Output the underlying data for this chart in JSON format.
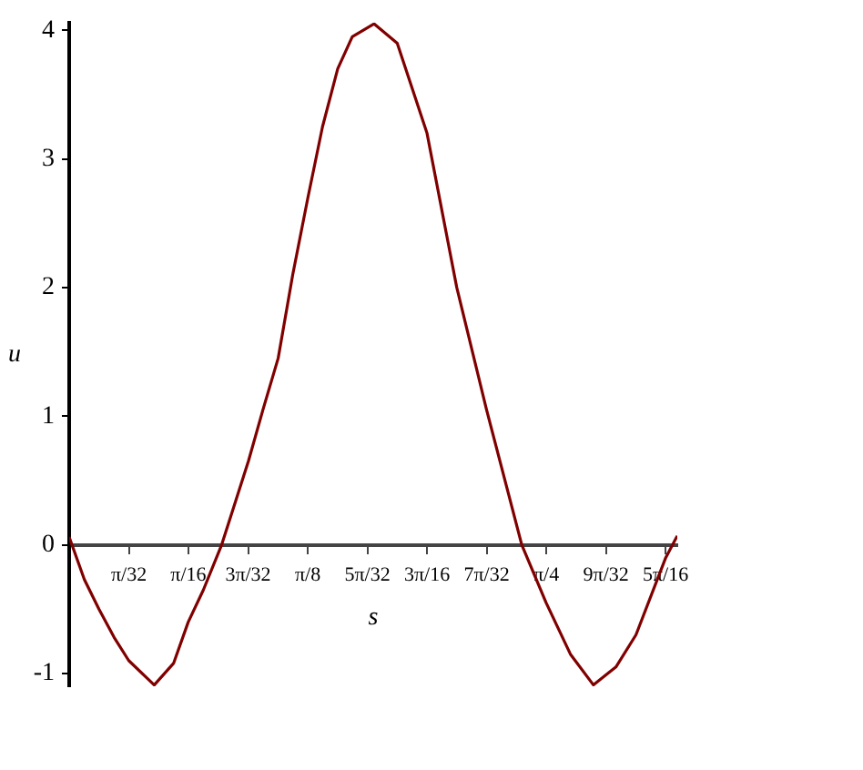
{
  "chart_data": {
    "type": "line",
    "xlabel": "s",
    "ylabel": "u",
    "x": [
      0,
      0.025,
      0.049,
      0.074,
      0.098,
      0.14,
      0.172,
      0.196,
      0.221,
      0.251,
      0.295,
      0.319,
      0.344,
      0.368,
      0.393,
      0.417,
      0.442,
      0.466,
      0.502,
      0.54,
      0.589,
      0.638,
      0.687,
      0.745,
      0.785,
      0.825,
      0.863,
      0.9,
      0.933,
      0.982,
      1.001
    ],
    "series": [
      {
        "color": "#800000",
        "values": [
          0.06,
          -0.27,
          -0.5,
          -0.72,
          -0.9,
          -1.09,
          -0.92,
          -0.6,
          -0.35,
          0,
          0.65,
          1.05,
          1.45,
          2.1,
          2.7,
          3.25,
          3.7,
          3.95,
          4.05,
          3.9,
          3.2,
          2.0,
          1.05,
          0,
          -0.45,
          -0.85,
          -1.09,
          -0.95,
          -0.7,
          -0.1,
          0.07
        ]
      }
    ],
    "xlim": [
      0,
      1.001
    ],
    "ylim": [
      -1.1,
      4.06
    ],
    "xticks": [
      {
        "value": 0.0982,
        "label": "π/32"
      },
      {
        "value": 0.1963,
        "label": "π/16"
      },
      {
        "value": 0.2945,
        "label": "3π/32"
      },
      {
        "value": 0.3927,
        "label": "π/8"
      },
      {
        "value": 0.4909,
        "label": "5π/32"
      },
      {
        "value": 0.589,
        "label": "3π/16"
      },
      {
        "value": 0.6872,
        "label": "7π/32"
      },
      {
        "value": 0.7854,
        "label": "π/4"
      },
      {
        "value": 0.8836,
        "label": "9π/32"
      },
      {
        "value": 0.9817,
        "label": "5π/16"
      }
    ],
    "yticks": [
      -1,
      0,
      1,
      2,
      3,
      4
    ],
    "grid": false,
    "legend": false,
    "marker": "none",
    "line_style": "solid"
  }
}
